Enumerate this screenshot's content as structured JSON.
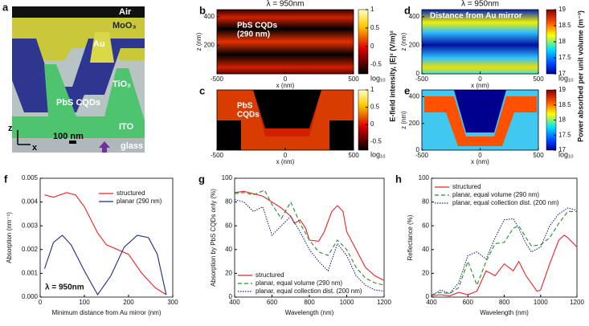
{
  "figure": {
    "schematic": {
      "label": "a",
      "air": "Air",
      "moo3": "MoO₃",
      "au": "Au",
      "tio2": "TiO₂",
      "pbs": "PbS CQDs",
      "ito": "ITO",
      "glass": "glass",
      "scale": "100 nm",
      "z": "z",
      "x": "x"
    }
  },
  "chart_data": [
    {
      "type": "line",
      "label": "f",
      "xlabel": "Minimum distance from Au mirror (nm)",
      "ylabel": "Absorption (nm⁻¹)",
      "annotation": "λ = 950nm",
      "xlim": [
        0,
        300
      ],
      "xticks": [
        0,
        100,
        200,
        300
      ],
      "ylim": [
        0,
        0.005
      ],
      "yticks": [
        {
          "value": 0,
          "label": "0.000"
        },
        {
          "value": 0.001,
          "label": "0.001"
        },
        {
          "value": 0.002,
          "label": "0.002"
        },
        {
          "value": 0.003,
          "label": "0.003"
        },
        {
          "value": 0.004,
          "label": "0.004"
        },
        {
          "value": 0.005,
          "label": "0.005"
        }
      ],
      "legend": "upper right",
      "series": [
        {
          "name": "structured",
          "color": "#e8222a",
          "dash": "solid",
          "x": [
            10,
            30,
            60,
            80,
            100,
            130,
            150,
            200,
            230,
            260,
            285
          ],
          "values": [
            0.0043,
            0.0042,
            0.0044,
            0.0043,
            0.0038,
            0.0027,
            0.0022,
            0.0018,
            0.001,
            0.0004,
            0.0001
          ]
        },
        {
          "name": "planar (290 nm)",
          "color": "#1c2a8a",
          "dash": "solid",
          "x": [
            10,
            30,
            50,
            70,
            100,
            130,
            160,
            190,
            220,
            245,
            265,
            285
          ],
          "values": [
            0.0012,
            0.0023,
            0.0026,
            0.0022,
            0.0011,
            0.0001,
            0.0009,
            0.0021,
            0.0026,
            0.0025,
            0.0018,
            0.0001
          ]
        }
      ]
    },
    {
      "type": "line",
      "label": "g",
      "xlabel": "Wavelength (nm)",
      "ylabel": "Absorption by PbS CQDs only (%)",
      "xlim": [
        400,
        1200
      ],
      "xticks": [
        400,
        600,
        800,
        1000,
        1200
      ],
      "ylim": [
        0,
        100
      ],
      "yticks": [
        0,
        20,
        40,
        60,
        80,
        100
      ],
      "legend": "lower left",
      "series": [
        {
          "name": "structured",
          "color": "#e8222a",
          "dash": "solid",
          "x": [
            400,
            450,
            500,
            550,
            600,
            650,
            700,
            720,
            750,
            780,
            800,
            850,
            880,
            920,
            950,
            980,
            1000,
            1050,
            1100,
            1150,
            1200
          ],
          "values": [
            88,
            89,
            87,
            85,
            80,
            75,
            68,
            62,
            65,
            58,
            48,
            47,
            55,
            72,
            77,
            72,
            55,
            40,
            25,
            18,
            14
          ]
        },
        {
          "name": "planar, equal volume (290 nm)",
          "color": "#2a8a2a",
          "dash": "dashed",
          "x": [
            400,
            450,
            500,
            560,
            600,
            650,
            700,
            750,
            800,
            850,
            900,
            950,
            1000,
            1050,
            1100,
            1150,
            1200
          ],
          "values": [
            87,
            88,
            86,
            90,
            78,
            66,
            80,
            62,
            48,
            38,
            35,
            48,
            40,
            25,
            16,
            12,
            10
          ]
        },
        {
          "name": "planar, equal collection dist. (200 nm)",
          "color": "#1c2a8a",
          "dash": "dotted",
          "x": [
            400,
            450,
            500,
            550,
            600,
            650,
            700,
            750,
            800,
            850,
            900,
            950,
            1000,
            1050,
            1100,
            1150,
            1200
          ],
          "values": [
            82,
            80,
            72,
            76,
            52,
            60,
            68,
            55,
            40,
            30,
            22,
            45,
            35,
            18,
            10,
            6,
            5
          ]
        }
      ]
    },
    {
      "type": "line",
      "label": "h",
      "xlabel": "Wavelength (nm)",
      "ylabel": "Reflectance (%)",
      "xlim": [
        400,
        1200
      ],
      "xticks": [
        400,
        600,
        800,
        1000,
        1200
      ],
      "ylim": [
        0,
        100
      ],
      "yticks": [
        0,
        20,
        40,
        60,
        80,
        100
      ],
      "legend": "upper left",
      "series": [
        {
          "name": "structured",
          "color": "#e8222a",
          "dash": "solid",
          "x": [
            400,
            450,
            500,
            550,
            600,
            650,
            700,
            750,
            800,
            850,
            880,
            920,
            980,
            1000,
            1050,
            1100,
            1130,
            1150,
            1200
          ],
          "values": [
            1,
            2,
            1,
            4,
            2,
            5,
            22,
            18,
            28,
            22,
            30,
            18,
            5,
            6,
            28,
            48,
            52,
            50,
            42
          ]
        },
        {
          "name": "planar, equal volume (290 nm)",
          "color": "#2a8a2a",
          "dash": "dashed",
          "x": [
            400,
            450,
            500,
            550,
            600,
            650,
            700,
            750,
            800,
            850,
            880,
            920,
            950,
            1000,
            1050,
            1100,
            1150,
            1200
          ],
          "values": [
            2,
            4,
            3,
            8,
            30,
            10,
            30,
            45,
            46,
            58,
            60,
            50,
            43,
            44,
            50,
            62,
            72,
            72
          ]
        },
        {
          "name": "planar, equal collection dist. (200 nm)",
          "color": "#1c2a8a",
          "dash": "dotted",
          "x": [
            400,
            450,
            500,
            550,
            600,
            650,
            700,
            750,
            800,
            850,
            880,
            920,
            950,
            1000,
            1050,
            1100,
            1150,
            1200
          ],
          "values": [
            1,
            6,
            3,
            12,
            35,
            38,
            32,
            50,
            65,
            66,
            58,
            45,
            38,
            42,
            60,
            70,
            75,
            73
          ]
        }
      ]
    },
    {
      "type": "heatmap",
      "label": "b",
      "title": "λ = 950nm",
      "xlabel": "x (nm)",
      "ylabel": "z (nm)",
      "annotation": [
        "PbS CQDs",
        "(290 nm)"
      ],
      "xlim": [
        -500,
        500
      ],
      "xticks": [
        -500,
        0,
        500
      ],
      "ylim": [
        0,
        450
      ],
      "yticks": [
        200,
        400
      ],
      "colorbar": {
        "label": "E-field intensity, |E|² (V/m)²",
        "unit": "log₁₀",
        "lim": [
          -0.75,
          1
        ],
        "ticks": [
          -0.5,
          0,
          0.5,
          1
        ]
      }
    },
    {
      "type": "heatmap",
      "label": "c",
      "xlabel": "x (nm)",
      "annotation": [
        "PbS",
        "CQDs"
      ],
      "xlim": [
        -500,
        500
      ],
      "xticks": [
        -500,
        0,
        500
      ],
      "ylim": [
        0,
        450
      ],
      "colorbar": {
        "unit": "log₁₀",
        "lim": [
          -0.75,
          1
        ],
        "ticks": [
          -0.5,
          0,
          0.5,
          1
        ]
      }
    },
    {
      "type": "heatmap",
      "label": "d",
      "title": "λ = 950nm",
      "xlabel": "x (nm)",
      "ylabel": "z (nm)",
      "annotation": [
        "Distance from Au mirror"
      ],
      "xlim": [
        -500,
        500
      ],
      "xticks": [
        -500,
        0,
        500
      ],
      "ylim": [
        0,
        450
      ],
      "yticks": [
        0,
        200,
        400
      ],
      "colorbar": {
        "label": "Power absorbed per unit volume (m⁻³)",
        "unit": "log₁₀",
        "lim": [
          17,
          19
        ],
        "ticks": [
          17,
          17.5,
          18,
          18.5,
          19
        ]
      }
    },
    {
      "type": "heatmap",
      "label": "e",
      "xlabel": "x (nm)",
      "ylabel": "z (nm)",
      "xlim": [
        -500,
        500
      ],
      "xticks": [
        -500,
        0,
        500
      ],
      "ylim": [
        0,
        450
      ],
      "yticks": [
        0,
        200,
        400
      ],
      "colorbar": {
        "unit": "log₁₀",
        "lim": [
          17,
          19
        ],
        "ticks": [
          17,
          17.5,
          18,
          18.5,
          19
        ]
      }
    }
  ]
}
